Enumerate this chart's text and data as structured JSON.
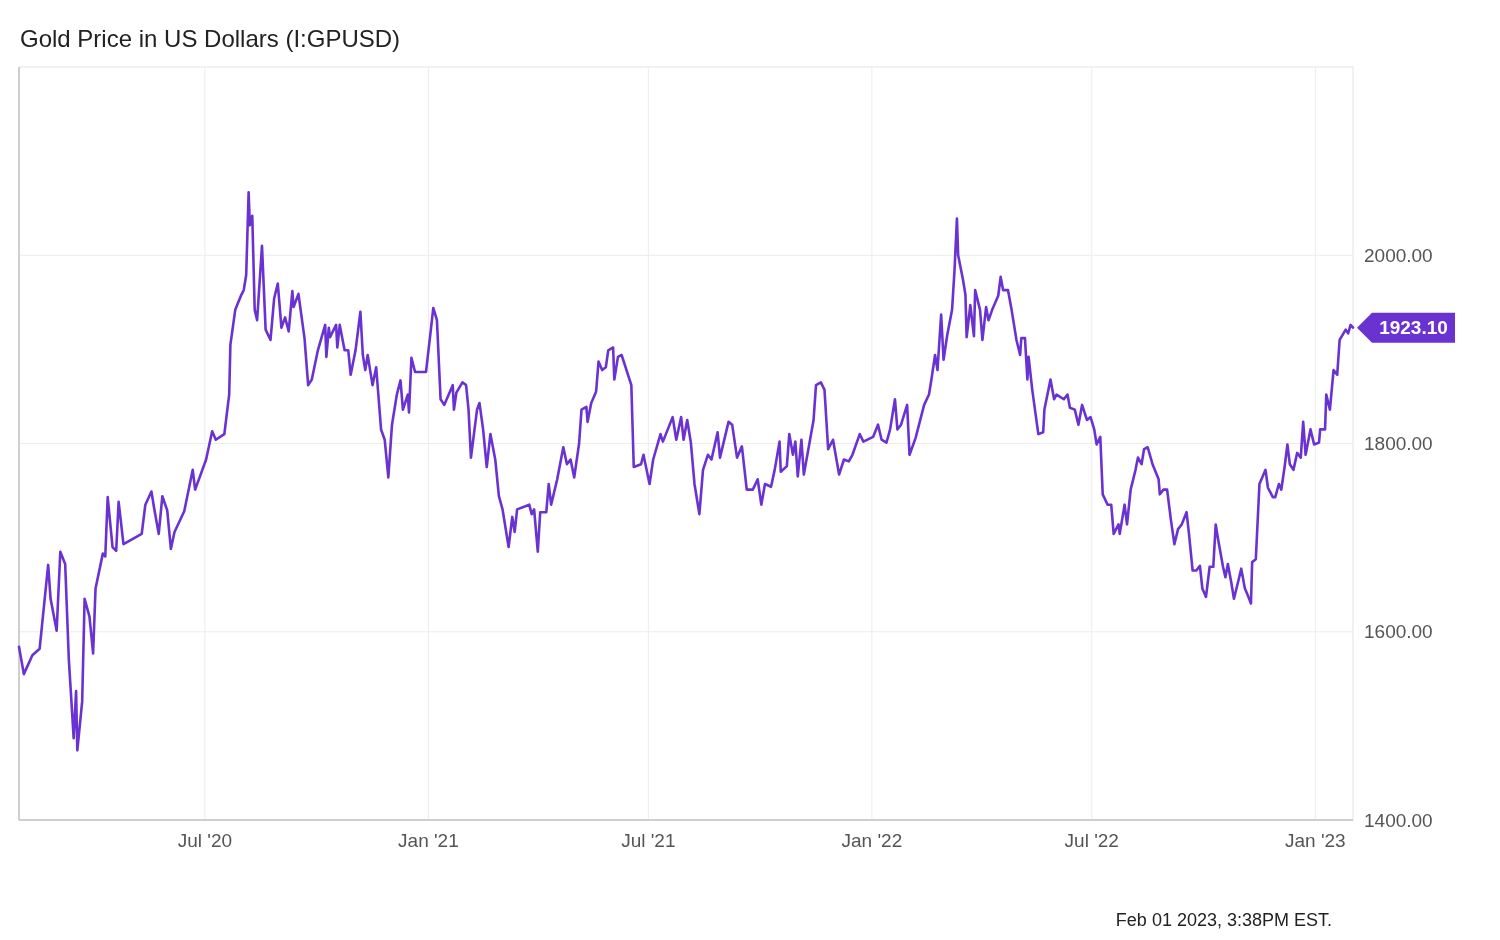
{
  "chart_data": {
    "type": "line",
    "title": "Gold Price in US Dollars (I:GPUSD)",
    "xlim": [
      "2020-01-30",
      "2023-02-01"
    ],
    "ylim": [
      1400,
      2200
    ],
    "xticks": [
      {
        "value": "2020-07-01",
        "label": "Jul '20"
      },
      {
        "value": "2021-01-01",
        "label": "Jan '21"
      },
      {
        "value": "2021-07-01",
        "label": "Jul '21"
      },
      {
        "value": "2022-01-01",
        "label": "Jan '22"
      },
      {
        "value": "2022-07-01",
        "label": "Jul '22"
      },
      {
        "value": "2023-01-01",
        "label": "Jan '23"
      }
    ],
    "yticks": [
      {
        "value": 1400,
        "label": "1400.00"
      },
      {
        "value": 1600,
        "label": "1600.00"
      },
      {
        "value": 1800,
        "label": "1800.00"
      },
      {
        "value": 2000,
        "label": "2000.00"
      }
    ],
    "grid": true,
    "annotations": [
      {
        "text": "1923.10",
        "x": "2023-02-01",
        "y": 1923.1
      },
      "Feb 01 2023, 3:38PM EST."
    ],
    "series": [
      {
        "color": "#6a32d0",
        "x": [
          "2020-01-30",
          "2020-02-03",
          "2020-02-10",
          "2020-02-16",
          "2020-02-23",
          "2020-02-25",
          "2020-03-01",
          "2020-03-04",
          "2020-03-08",
          "2020-03-11",
          "2020-03-15",
          "2020-03-17",
          "2020-03-18",
          "2020-03-22",
          "2020-03-24",
          "2020-03-28",
          "2020-03-31",
          "2020-04-02",
          "2020-04-08",
          "2020-04-10",
          "2020-04-12",
          "2020-04-16",
          "2020-04-19",
          "2020-04-21",
          "2020-04-25",
          "2020-05-10",
          "2020-05-13",
          "2020-05-18",
          "2020-05-20",
          "2020-05-24",
          "2020-05-27",
          "2020-05-31",
          "2020-06-03",
          "2020-06-06",
          "2020-06-14",
          "2020-06-21",
          "2020-06-23",
          "2020-07-02",
          "2020-07-07",
          "2020-07-10",
          "2020-07-17",
          "2020-07-21",
          "2020-07-22",
          "2020-07-26",
          "2020-07-31",
          "2020-08-02",
          "2020-08-04",
          "2020-08-06",
          "2020-08-07",
          "2020-08-09",
          "2020-08-11",
          "2020-08-13",
          "2020-08-17",
          "2020-08-20",
          "2020-08-24",
          "2020-08-27",
          "2020-08-30",
          "2020-09-02",
          "2020-09-05",
          "2020-09-08",
          "2020-09-11",
          "2020-09-12",
          "2020-09-16",
          "2020-09-21",
          "2020-09-24",
          "2020-09-27",
          "2020-10-02",
          "2020-10-08",
          "2020-10-09",
          "2020-10-11",
          "2020-10-12",
          "2020-10-17",
          "2020-10-18",
          "2020-10-20",
          "2020-10-24",
          "2020-10-27",
          "2020-10-29",
          "2020-11-02",
          "2020-11-06",
          "2020-11-08",
          "2020-11-10",
          "2020-11-12",
          "2020-11-16",
          "2020-11-19",
          "2020-11-23",
          "2020-11-26",
          "2020-11-29",
          "2020-12-02",
          "2020-12-06",
          "2020-12-09",
          "2020-12-11",
          "2020-12-15",
          "2020-12-16",
          "2020-12-18",
          "2020-12-21",
          "2020-12-30",
          "2021-01-03",
          "2021-01-05",
          "2021-01-08",
          "2021-01-11",
          "2021-01-14",
          "2021-01-21",
          "2021-01-22",
          "2021-01-24",
          "2021-01-29",
          "2021-02-01",
          "2021-02-03",
          "2021-02-05",
          "2021-02-10",
          "2021-02-12",
          "2021-02-15",
          "2021-02-18",
          "2021-02-21",
          "2021-02-25",
          "2021-02-28",
          "2021-03-03",
          "2021-03-08",
          "2021-03-11",
          "2021-03-13",
          "2021-03-15",
          "2021-03-25",
          "2021-03-27",
          "2021-03-29",
          "2021-04-01",
          "2021-04-03",
          "2021-04-08",
          "2021-04-10",
          "2021-04-12",
          "2021-04-17",
          "2021-04-22",
          "2021-04-25",
          "2021-04-28",
          "2021-05-01",
          "2021-05-05",
          "2021-05-07",
          "2021-05-11",
          "2021-05-12",
          "2021-05-15",
          "2021-05-19",
          "2021-05-21",
          "2021-05-24",
          "2021-05-27",
          "2021-05-29",
          "2021-06-02",
          "2021-06-03",
          "2021-06-06",
          "2021-06-09",
          "2021-06-17",
          "2021-06-19",
          "2021-06-25",
          "2021-06-27",
          "2021-07-02",
          "2021-07-05",
          "2021-07-11",
          "2021-07-13",
          "2021-07-21",
          "2021-07-24",
          "2021-07-28",
          "2021-07-30",
          "2021-08-02",
          "2021-08-05",
          "2021-08-08",
          "2021-08-12",
          "2021-08-15",
          "2021-08-19",
          "2021-08-22",
          "2021-08-27",
          "2021-08-29",
          "2021-09-05",
          "2021-09-08",
          "2021-09-12",
          "2021-09-16",
          "2021-09-20",
          "2021-09-25",
          "2021-09-29",
          "2021-10-02",
          "2021-10-05",
          "2021-10-10",
          "2021-10-13",
          "2021-10-17",
          "2021-10-18",
          "2021-10-23",
          "2021-10-25",
          "2021-10-28",
          "2021-10-30",
          "2021-11-01",
          "2021-11-04",
          "2021-11-06",
          "2021-11-10",
          "2021-11-14",
          "2021-11-16",
          "2021-11-20",
          "2021-11-23",
          "2021-11-26",
          "2021-11-30",
          "2021-12-05",
          "2021-12-09",
          "2021-12-13",
          "2021-12-16",
          "2021-12-22",
          "2021-12-25",
          "2022-01-02",
          "2022-01-06",
          "2022-01-09",
          "2022-01-13",
          "2022-01-16",
          "2022-01-20",
          "2022-01-22",
          "2022-01-25",
          "2022-01-30",
          "2022-02-01",
          "2022-02-06",
          "2022-02-13",
          "2022-02-17",
          "2022-02-19",
          "2022-02-22",
          "2022-02-24",
          "2022-02-27",
          "2022-03-01",
          "2022-03-04",
          "2022-03-08",
          "2022-03-10",
          "2022-03-12",
          "2022-03-13",
          "2022-03-17",
          "2022-03-19",
          "2022-03-20",
          "2022-03-23",
          "2022-03-26",
          "2022-03-27",
          "2022-03-31",
          "2022-04-02",
          "2022-04-05",
          "2022-04-07",
          "2022-04-10",
          "2022-04-15",
          "2022-04-17",
          "2022-04-19",
          "2022-04-23",
          "2022-04-26",
          "2022-04-30",
          "2022-05-03",
          "2022-05-04",
          "2022-05-07",
          "2022-05-09",
          "2022-05-10",
          "2022-05-13",
          "2022-05-18",
          "2022-05-22",
          "2022-05-23",
          "2022-05-28",
          "2022-05-31",
          "2022-06-02",
          "2022-06-08",
          "2022-06-11",
          "2022-06-13",
          "2022-06-17",
          "2022-06-20",
          "2022-06-23",
          "2022-06-27",
          "2022-06-30",
          "2022-07-03",
          "2022-07-05",
          "2022-07-08",
          "2022-07-10",
          "2022-07-14",
          "2022-07-17",
          "2022-07-19",
          "2022-07-23",
          "2022-07-24",
          "2022-07-28",
          "2022-07-30",
          "2022-08-02",
          "2022-08-06",
          "2022-08-08",
          "2022-08-11",
          "2022-08-13",
          "2022-08-16",
          "2022-08-20",
          "2022-08-25",
          "2022-08-26",
          "2022-08-29",
          "2022-09-01",
          "2022-09-04",
          "2022-09-07",
          "2022-09-10",
          "2022-09-13",
          "2022-09-17",
          "2022-09-19",
          "2022-09-22",
          "2022-09-25",
          "2022-09-28",
          "2022-09-30",
          "2022-10-03",
          "2022-10-06",
          "2022-10-09",
          "2022-10-11",
          "2022-10-13",
          "2022-10-17",
          "2022-10-19",
          "2022-10-21",
          "2022-10-24",
          "2022-10-26",
          "2022-10-30",
          "2022-11-01",
          "2022-11-04",
          "2022-11-06",
          "2022-11-09",
          "2022-11-10",
          "2022-11-13",
          "2022-11-16",
          "2022-11-21",
          "2022-11-23",
          "2022-11-27",
          "2022-11-29",
          "2022-12-02",
          "2022-12-04",
          "2022-12-07",
          "2022-12-09",
          "2022-12-11",
          "2022-12-14",
          "2022-12-17",
          "2022-12-20",
          "2022-12-22",
          "2022-12-24",
          "2022-12-28",
          "2022-12-31",
          "2023-01-04",
          "2023-01-05",
          "2023-01-09",
          "2023-01-10",
          "2023-01-13",
          "2023-01-16",
          "2023-01-19",
          "2023-01-21",
          "2023-01-26",
          "2023-01-28",
          "2023-01-30",
          "2023-02-01"
        ],
        "values": [
          1584,
          1555,
          1575,
          1582,
          1671,
          1635,
          1601,
          1685,
          1672,
          1571,
          1487,
          1537,
          1474,
          1526,
          1635,
          1616,
          1577,
          1646,
          1683,
          1680,
          1743,
          1690,
          1686,
          1738,
          1693,
          1704,
          1735,
          1749,
          1733,
          1704,
          1744,
          1729,
          1688,
          1706,
          1728,
          1772,
          1751,
          1783,
          1813,
          1804,
          1810,
          1852,
          1905,
          1942,
          1958,
          1963,
          1979,
          2067,
          2032,
          2042,
          1942,
          1931,
          2010,
          1921,
          1910,
          1954,
          1970,
          1923,
          1934,
          1919,
          1962,
          1945,
          1959,
          1912,
          1862,
          1868,
          1899,
          1926,
          1892,
          1923,
          1913,
          1926,
          1902,
          1926,
          1899,
          1899,
          1873,
          1899,
          1940,
          1894,
          1878,
          1894,
          1862,
          1881,
          1815,
          1804,
          1764,
          1820,
          1852,
          1867,
          1836,
          1852,
          1833,
          1891,
          1876,
          1876,
          1921,
          1944,
          1931,
          1847,
          1841,
          1862,
          1836,
          1854,
          1865,
          1862,
          1836,
          1785,
          1836,
          1843,
          1815,
          1775,
          1810,
          1783,
          1744,
          1730,
          1690,
          1722,
          1706,
          1730,
          1735,
          1725,
          1730,
          1685,
          1727,
          1727,
          1757,
          1735,
          1762,
          1796,
          1778,
          1783,
          1764,
          1800,
          1836,
          1839,
          1823,
          1843,
          1855,
          1887,
          1878,
          1881,
          1899,
          1902,
          1868,
          1892,
          1894,
          1862,
          1775,
          1778,
          1788,
          1757,
          1783,
          1810,
          1802,
          1828,
          1804,
          1828,
          1804,
          1825,
          1801,
          1757,
          1725,
          1772,
          1788,
          1783,
          1812,
          1785,
          1823,
          1820,
          1785,
          1797,
          1751,
          1751,
          1762,
          1735,
          1757,
          1754,
          1772,
          1802,
          1770,
          1776,
          1810,
          1788,
          1802,
          1765,
          1804,
          1767,
          1796,
          1825,
          1862,
          1865,
          1857,
          1794,
          1804,
          1767,
          1783,
          1781,
          1788,
          1810,
          1802,
          1807,
          1820,
          1804,
          1801,
          1815,
          1847,
          1815,
          1820,
          1841,
          1788,
          1806,
          1841,
          1852,
          1868,
          1894,
          1878,
          1937,
          1889,
          1915,
          1942,
          1984,
          2039,
          2000,
          1974,
          1958,
          1913,
          1947,
          1914,
          1963,
          1942,
          1910,
          1945,
          1931,
          1942,
          1957,
          1977,
          1963,
          1963,
          1942,
          1910,
          1894,
          1912,
          1912,
          1868,
          1892,
          1857,
          1810,
          1812,
          1836,
          1868,
          1847,
          1852,
          1847,
          1852,
          1838,
          1836,
          1820,
          1841,
          1825,
          1828,
          1815,
          1799,
          1807,
          1746,
          1735,
          1735,
          1704,
          1714,
          1704,
          1735,
          1714,
          1751,
          1772,
          1785,
          1778,
          1794,
          1796,
          1778,
          1762,
          1746,
          1751,
          1751,
          1720,
          1693,
          1709,
          1714,
          1727,
          1704,
          1665,
          1665,
          1670,
          1646,
          1637,
          1669,
          1669,
          1714,
          1698,
          1669,
          1658,
          1672,
          1651,
          1635,
          1656,
          1667,
          1646,
          1640,
          1630,
          1674,
          1677,
          1757,
          1772,
          1753,
          1743,
          1743,
          1757,
          1751,
          1778,
          1799,
          1778,
          1772,
          1790,
          1785,
          1823,
          1788,
          1815,
          1799,
          1801,
          1815,
          1815,
          1852,
          1836,
          1878,
          1873,
          1910,
          1921,
          1917,
          1926,
          1923.1
        ]
      }
    ]
  }
}
